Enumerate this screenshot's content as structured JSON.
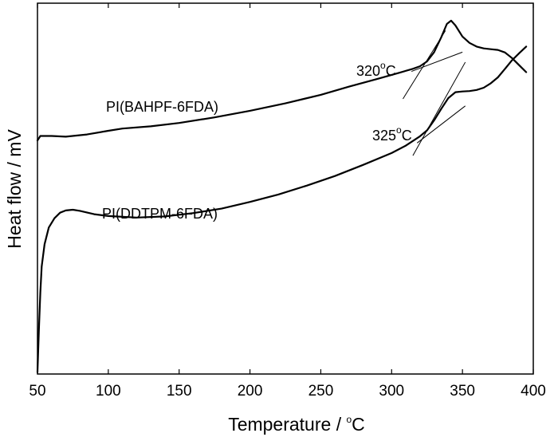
{
  "chart_data": {
    "type": "line",
    "xlabel": "Temperature / ",
    "xlabel_unit_degree": "o",
    "xlabel_unit_letter": "C",
    "ylabel": "Heat flow / mV",
    "xlim": [
      50,
      400
    ],
    "ylim": [
      0,
      100
    ],
    "x_ticks": [
      50,
      100,
      150,
      200,
      250,
      300,
      350,
      400
    ],
    "y_ticks_shown": false,
    "grid": false,
    "series": [
      {
        "name": "PI(BAHPF-6FDA)",
        "x": [
          50,
          52,
          60,
          70,
          85,
          100,
          110,
          130,
          150,
          175,
          200,
          225,
          250,
          270,
          290,
          305,
          315,
          320,
          325,
          330,
          335,
          339,
          342,
          345,
          350,
          355,
          360,
          365,
          370,
          375,
          380,
          385,
          390,
          395
        ],
        "y": [
          63.0,
          64.2,
          64.2,
          64.0,
          64.6,
          65.6,
          66.2,
          66.8,
          67.7,
          69.2,
          71.0,
          73.0,
          75.3,
          77.5,
          79.6,
          81.2,
          82.3,
          83.0,
          84.3,
          86.8,
          90.8,
          94.4,
          95.3,
          94.0,
          91.0,
          89.3,
          88.3,
          87.8,
          87.6,
          87.4,
          86.7,
          85.2,
          83.3,
          81.4
        ],
        "onset_label": "320",
        "onset_degree": "o",
        "onset_unit": "C",
        "onset_tangents": [
          {
            "x": [
              308,
              338
            ],
            "y": [
              74.2,
              92.6
            ]
          },
          {
            "x": [
              314,
              350
            ],
            "y": [
              81.6,
              86.8
            ]
          }
        ]
      },
      {
        "name": "PI(DDTPM-6FDA)",
        "x": [
          50,
          51,
          52,
          53,
          55,
          58,
          62,
          66,
          70,
          75,
          80,
          90,
          100,
          120,
          140,
          160,
          180,
          200,
          220,
          240,
          260,
          280,
          300,
          310,
          320,
          325,
          330,
          335,
          340,
          345,
          350,
          355,
          360,
          365,
          370,
          375,
          380,
          385,
          390,
          395
        ],
        "y": [
          0.5,
          12.0,
          22.0,
          29.0,
          35.0,
          39.5,
          42.0,
          43.5,
          44.1,
          44.3,
          44.0,
          43.1,
          42.6,
          42.2,
          42.5,
          43.4,
          44.6,
          46.4,
          48.4,
          50.8,
          53.4,
          56.4,
          59.6,
          61.6,
          64.1,
          65.7,
          68.4,
          71.5,
          74.4,
          76.0,
          76.2,
          76.3,
          76.6,
          77.2,
          78.4,
          80.0,
          82.3,
          84.6,
          86.5,
          88.3
        ],
        "onset_label": "325",
        "onset_degree": "o",
        "onset_unit": "C",
        "onset_tangents": [
          {
            "x": [
              315,
              352
            ],
            "y": [
              58.9,
              84.1
            ]
          },
          {
            "x": [
              318,
              352
            ],
            "y": [
              62.3,
              72.3
            ]
          }
        ]
      }
    ]
  }
}
